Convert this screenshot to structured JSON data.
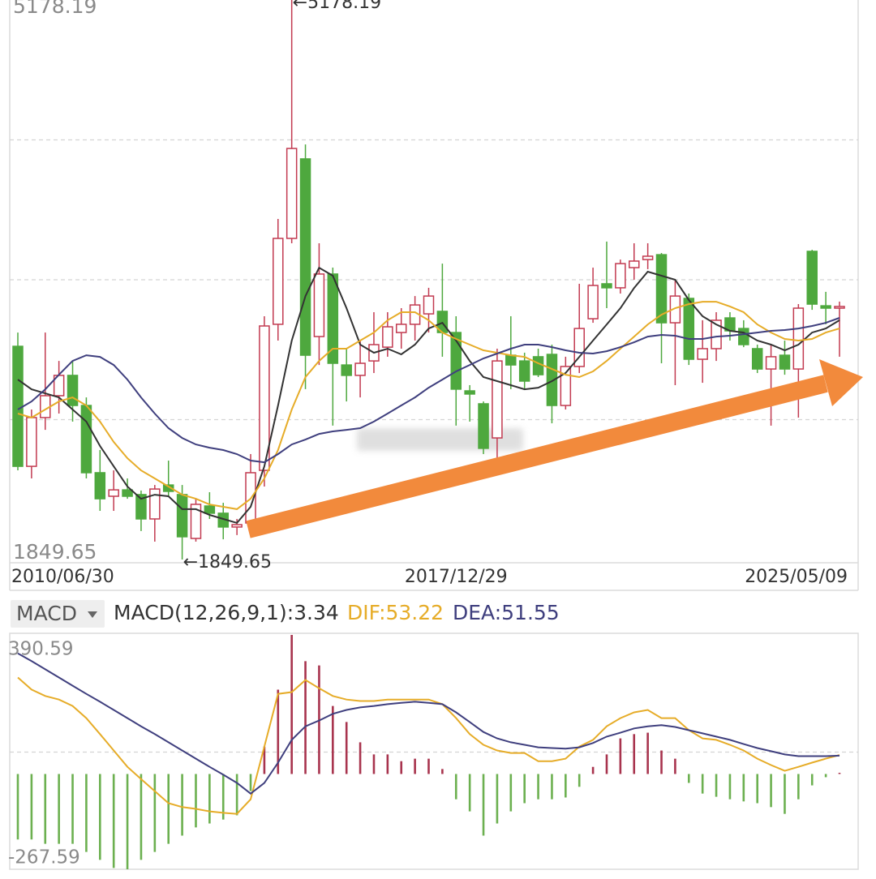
{
  "chart_data": [
    {
      "type": "candlestick",
      "categories": [
        "2010/06/30",
        null,
        null,
        null,
        null,
        null,
        null,
        null,
        null,
        null,
        null,
        null,
        null,
        null,
        null,
        null,
        null,
        null,
        null,
        null,
        null,
        null,
        null,
        null,
        null,
        null,
        null,
        null,
        null,
        null,
        null,
        null,
        "2017/12/29",
        null,
        null,
        null,
        null,
        null,
        null,
        null,
        null,
        null,
        null,
        null,
        null,
        null,
        null,
        null,
        null,
        null,
        null,
        null,
        null,
        null,
        null,
        null,
        null,
        null,
        null,
        null,
        "2025/05/09"
      ],
      "open": [
        3118,
        2404,
        2694,
        2824,
        2945,
        2766,
        2366,
        2226,
        2264,
        2236,
        2091,
        2293,
        2236,
        1975,
        2168,
        2125,
        2043,
        2067,
        2380,
        3249,
        3760,
        4233,
        3176,
        3548,
        3007,
        2945,
        3031,
        3113,
        3200,
        3249,
        3311,
        3326,
        3200,
        2853,
        2776,
        2573,
        3065,
        3031,
        3056,
        3070,
        2766,
        2998,
        3282,
        3490,
        3466,
        3586,
        3634,
        3663,
        3258,
        3403,
        3041,
        3104,
        3287,
        3224,
        3104,
        2983,
        3065,
        2983,
        3683,
        3359,
        3345
      ],
      "high": [
        3200,
        2742,
        3200,
        3031,
        3031,
        2814,
        2501,
        2380,
        2332,
        2260,
        2293,
        2438,
        2293,
        2211,
        2250,
        2187,
        2091,
        2477,
        3297,
        3876,
        5178.19,
        4319,
        3731,
        3586,
        3104,
        3152,
        3321,
        3321,
        3345,
        3417,
        3466,
        3610,
        3297,
        2887,
        2790,
        3104,
        3297,
        3080,
        3104,
        3128,
        3056,
        3490,
        3586,
        3741,
        3634,
        3731,
        3731,
        3673,
        3514,
        3432,
        3273,
        3321,
        3321,
        3273,
        3128,
        3128,
        3152,
        3369,
        3692,
        3442,
        3384
      ],
      "low": [
        2380,
        2332,
        2621,
        2718,
        2670,
        2332,
        2139,
        2139,
        2211,
        2019,
        1956,
        2226,
        1849.65,
        1956,
        2091,
        1970,
        1995,
        2043,
        2284,
        3152,
        3731,
        2863,
        3007,
        2646,
        2790,
        2814,
        2959,
        3056,
        3104,
        3152,
        3200,
        3056,
        2646,
        2670,
        2477,
        2453,
        2863,
        2863,
        2935,
        2660,
        2742,
        2959,
        3258,
        3345,
        3432,
        3514,
        3577,
        3017,
        2887,
        3007,
        2901,
        3031,
        3152,
        3113,
        2959,
        2646,
        2949,
        2694,
        3335,
        3249,
        3056
      ],
      "close": [
        2404,
        2694,
        2824,
        2945,
        2766,
        2366,
        2211,
        2264,
        2226,
        2091,
        2269,
        2255,
        1985,
        2178,
        2125,
        2043,
        2057,
        2366,
        3239,
        3760,
        4295,
        3065,
        3548,
        3017,
        2945,
        3017,
        3128,
        3234,
        3249,
        3364,
        3417,
        3200,
        2863,
        2834,
        2511,
        3031,
        3007,
        2911,
        2949,
        2766,
        2998,
        3224,
        3480,
        3466,
        3610,
        3625,
        3654,
        3258,
        3417,
        3041,
        3104,
        3273,
        3210,
        3128,
        2983,
        3056,
        2983,
        3345,
        3369,
        3345,
        3355
      ],
      "up_color": "#c23a50",
      "down_color": "#4ea83e",
      "series": [
        {
          "color": "#333333",
          "values": [
            2920,
            2862,
            2838,
            2814,
            2742,
            2670,
            2525,
            2404,
            2284,
            2211,
            2235,
            2226,
            2149,
            2149,
            2115,
            2091,
            2067,
            2163,
            2404,
            2766,
            3152,
            3417,
            3586,
            3538,
            3345,
            3128,
            3080,
            3104,
            3070,
            3128,
            3224,
            3258,
            3152,
            3031,
            2935,
            2911,
            2887,
            2862,
            2872,
            2911,
            2959,
            3055,
            3152,
            3248,
            3345,
            3465,
            3562,
            3538,
            3514,
            3393,
            3297,
            3248,
            3210,
            3200,
            3152,
            3128,
            3094,
            3128,
            3200,
            3224,
            3273
          ]
        },
        {
          "color": "#e6ac28",
          "values": [
            2718,
            2694,
            2742,
            2790,
            2814,
            2766,
            2670,
            2549,
            2452,
            2380,
            2332,
            2284,
            2235,
            2211,
            2177,
            2163,
            2149,
            2211,
            2332,
            2501,
            2742,
            2935,
            3031,
            3104,
            3104,
            3152,
            3200,
            3273,
            3321,
            3321,
            3273,
            3200,
            3162,
            3128,
            3094,
            3080,
            3065,
            3055,
            3017,
            2983,
            2949,
            2935,
            2969,
            3031,
            3104,
            3176,
            3248,
            3306,
            3345,
            3369,
            3383,
            3383,
            3355,
            3321,
            3248,
            3200,
            3162,
            3152,
            3162,
            3200,
            3224
          ]
        },
        {
          "color": "#3f3f7e",
          "values": [
            2742,
            2790,
            2862,
            2949,
            3031,
            3065,
            3055,
            3007,
            2920,
            2814,
            2718,
            2631,
            2573,
            2534,
            2515,
            2501,
            2477,
            2438,
            2428,
            2477,
            2534,
            2563,
            2597,
            2612,
            2621,
            2631,
            2670,
            2718,
            2766,
            2814,
            2872,
            2920,
            2969,
            3007,
            3046,
            3075,
            3104,
            3128,
            3128,
            3113,
            3094,
            3080,
            3075,
            3089,
            3113,
            3142,
            3176,
            3186,
            3181,
            3162,
            3162,
            3176,
            3181,
            3190,
            3200,
            3210,
            3215,
            3224,
            3239,
            3258,
            3287
          ]
        }
      ],
      "ylim": [
        1849.65,
        5178.19
      ],
      "yticks": [
        1849.65,
        5178.19
      ],
      "grid": true,
      "annotations": [
        "←5178.19",
        "←1849.65"
      ]
    },
    {
      "type": "macd",
      "indicator": "MACD",
      "up_color": "#a8344e",
      "down_color": "#6cb050",
      "series": [
        {
          "name": "MACD(12,26,9,1):3.34",
          "color": "#333333",
          "values": [
            -184,
            -184,
            -196,
            -196,
            -196,
            -219,
            -241,
            -264,
            -267.59,
            -241,
            -219,
            -196,
            -173,
            -150,
            -139,
            -128,
            -116,
            -48,
            77,
            237,
            390.59,
            317,
            305,
            191,
            146,
            89,
            55,
            55,
            36,
            43,
            43,
            14,
            -71,
            -105,
            -173,
            -139,
            -105,
            -82,
            -71,
            -71,
            -66,
            -36,
            20,
            55,
            100,
            112,
            116,
            66,
            43,
            -25,
            -55,
            -64,
            -71,
            -77,
            -82,
            -93,
            -112,
            -71,
            -32,
            -9,
            3.34
          ]
        },
        {
          "name": "DIF:53.22",
          "color": "#e6ac28",
          "values": [
            271,
            237,
            219,
            209,
            191,
            157,
            112,
            66,
            20,
            -14,
            -48,
            -82,
            -93,
            -98,
            -105,
            -109,
            -112,
            -71,
            77,
            225,
            230,
            264,
            241,
            219,
            209,
            205,
            205,
            209,
            209,
            209,
            209,
            196,
            157,
            112,
            82,
            66,
            59,
            59,
            36,
            36,
            43,
            77,
            96,
            134,
            157,
            173,
            180,
            157,
            157,
            123,
            100,
            96,
            82,
            66,
            43,
            25,
            9,
            20,
            32,
            43,
            53.22
          ]
        },
        {
          "name": "DEA:51.55",
          "color": "#3f3f7e",
          "values": [
            339,
            317,
            294,
            271,
            248,
            225,
            203,
            180,
            157,
            134,
            112,
            89,
            66,
            43,
            20,
            -2,
            -25,
            -55,
            -25,
            32,
            96,
            134,
            150,
            169,
            180,
            187,
            191,
            196,
            200,
            203,
            200,
            196,
            173,
            146,
            118,
            100,
            89,
            82,
            75,
            73,
            71,
            75,
            87,
            105,
            116,
            128,
            134,
            137,
            132,
            123,
            114,
            105,
            96,
            84,
            73,
            64,
            55,
            50,
            50,
            50,
            51.55
          ]
        }
      ],
      "ylim": [
        -267.59,
        390.59
      ],
      "yticks": [
        -267.59,
        390.59
      ],
      "grid": true
    }
  ]
}
